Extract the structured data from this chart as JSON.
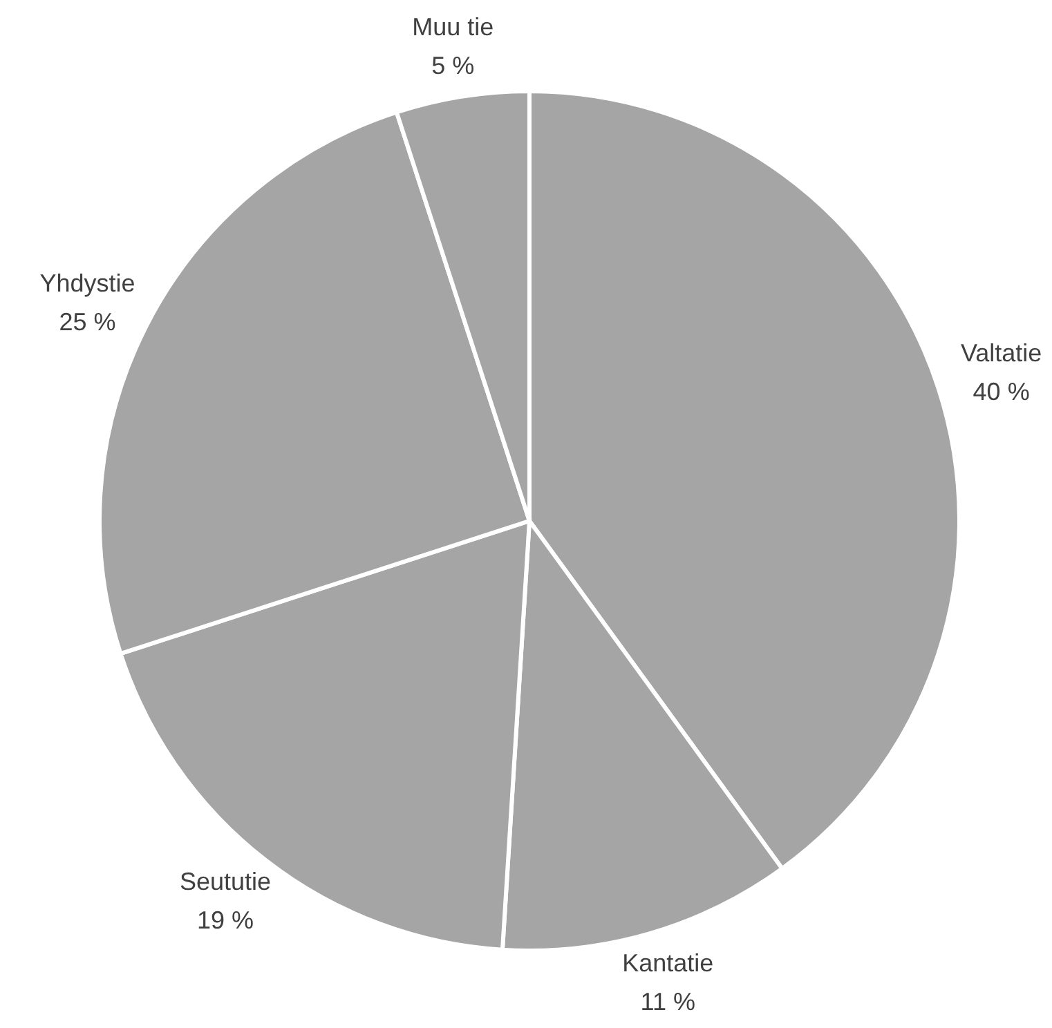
{
  "chart_data": {
    "type": "pie",
    "categories": [
      "Valtatie",
      "Kantatie",
      "Seututie",
      "Yhdystie",
      "Muu tie"
    ],
    "values": [
      40,
      11,
      19,
      25,
      5
    ],
    "value_labels": [
      "40 %",
      "11 %",
      "19 %",
      "25 %",
      "5 %"
    ],
    "colors": [
      "#a5a5a5",
      "#a5a5a5",
      "#a5a5a5",
      "#a5a5a5",
      "#a5a5a5"
    ]
  }
}
